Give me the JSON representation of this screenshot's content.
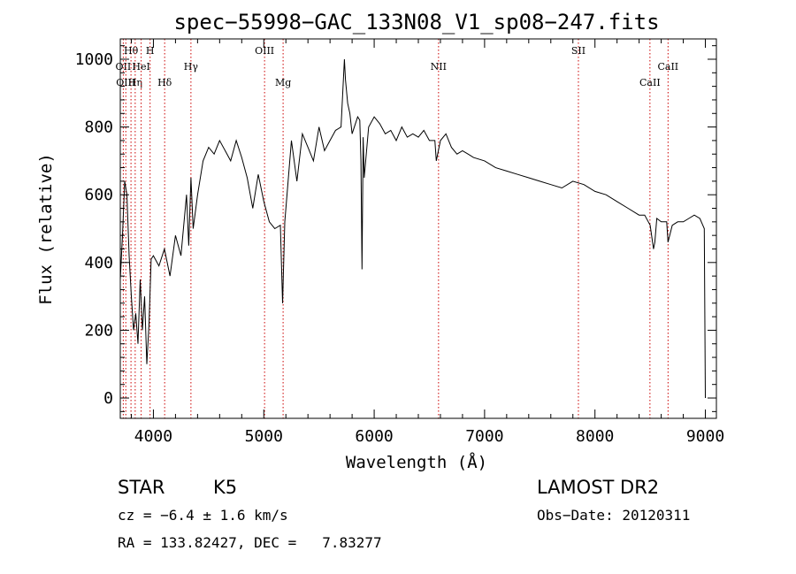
{
  "chart_data": {
    "type": "line",
    "title": "spec−55998−GAC_133N08_V1_sp08−247.fits",
    "xlabel": "Wavelength (Å)",
    "ylabel": "Flux (relative)",
    "xlim": [
      3700,
      9100
    ],
    "ylim": [
      -60,
      1060
    ],
    "xticks": [
      4000,
      5000,
      6000,
      7000,
      8000,
      9000
    ],
    "yticks": [
      0,
      200,
      400,
      600,
      800,
      1000
    ],
    "grid": false,
    "series": [
      {
        "x": [
          3700,
          3720,
          3740,
          3760,
          3780,
          3800,
          3820,
          3840,
          3860,
          3880,
          3900,
          3920,
          3940,
          3960,
          3980,
          4000,
          4050,
          4100,
          4150,
          4200,
          4250,
          4300,
          4320,
          4340,
          4360,
          4400,
          4450,
          4500,
          4550,
          4600,
          4650,
          4700,
          4750,
          4800,
          4850,
          4900,
          4950,
          5000,
          5050,
          5100,
          5150,
          5170,
          5190,
          5210,
          5250,
          5300,
          5350,
          5400,
          5450,
          5500,
          5550,
          5600,
          5650,
          5700,
          5730,
          5740,
          5760,
          5780,
          5800,
          5850,
          5870,
          5880,
          5890,
          5900,
          5910,
          5950,
          6000,
          6050,
          6100,
          6150,
          6200,
          6250,
          6300,
          6350,
          6400,
          6450,
          6500,
          6550,
          6563,
          6600,
          6650,
          6700,
          6750,
          6800,
          6850,
          6900,
          7000,
          7100,
          7200,
          7300,
          7400,
          7500,
          7600,
          7700,
          7800,
          7900,
          8000,
          8100,
          8200,
          8300,
          8400,
          8450,
          8500,
          8530,
          8542,
          8560,
          8600,
          8650,
          8662,
          8700,
          8750,
          8800,
          8850,
          8900,
          8950,
          8990,
          9000
        ],
        "y": [
          350,
          480,
          640,
          600,
          420,
          300,
          200,
          250,
          160,
          350,
          200,
          300,
          100,
          220,
          410,
          420,
          390,
          440,
          360,
          480,
          420,
          600,
          450,
          650,
          500,
          600,
          700,
          740,
          720,
          760,
          730,
          700,
          760,
          710,
          650,
          560,
          660,
          580,
          520,
          500,
          510,
          280,
          520,
          600,
          760,
          640,
          780,
          740,
          700,
          800,
          730,
          760,
          790,
          800,
          1000,
          940,
          870,
          840,
          780,
          830,
          820,
          700,
          380,
          770,
          650,
          800,
          830,
          810,
          780,
          790,
          760,
          800,
          770,
          780,
          770,
          790,
          760,
          760,
          700,
          760,
          780,
          740,
          720,
          730,
          720,
          710,
          700,
          680,
          670,
          660,
          650,
          640,
          630,
          620,
          640,
          630,
          610,
          600,
          580,
          560,
          540,
          540,
          510,
          440,
          460,
          530,
          520,
          520,
          460,
          510,
          520,
          520,
          530,
          540,
          530,
          500,
          0
        ]
      }
    ],
    "line_markers": [
      {
        "wavelength": 3727,
        "label": "OII",
        "row": 1
      },
      {
        "wavelength": 3750,
        "label": "OIII",
        "row": 2
      },
      {
        "wavelength": 3797,
        "label": "Hθ",
        "row": 0
      },
      {
        "wavelength": 3835,
        "label": "Hη",
        "row": 2
      },
      {
        "wavelength": 3889,
        "label": "HeI",
        "row": 1
      },
      {
        "wavelength": 3970,
        "label": "H",
        "row": 0
      },
      {
        "wavelength": 4102,
        "label": "Hδ",
        "row": 2
      },
      {
        "wavelength": 4340,
        "label": "Hγ",
        "row": 1
      },
      {
        "wavelength": 5007,
        "label": "OIII",
        "row": 0
      },
      {
        "wavelength": 5175,
        "label": "Mg",
        "row": 2
      },
      {
        "wavelength": 6583,
        "label": "NII",
        "row": 1
      },
      {
        "wavelength": 7850,
        "label": "SII",
        "row": 0
      },
      {
        "wavelength": 8498,
        "label": "CaII",
        "row": 2
      },
      {
        "wavelength": 8662,
        "label": "CaII",
        "row": 1
      }
    ],
    "marker_color": "#cc0000"
  },
  "info": {
    "class": "STAR",
    "subclass": "K5",
    "survey": "LAMOST DR2",
    "cz": "cz = −6.4 ± 1.6 km/s",
    "obs_date": "Obs−Date: 20120311",
    "coords": "RA = 133.82427, DEC =   7.83277"
  }
}
